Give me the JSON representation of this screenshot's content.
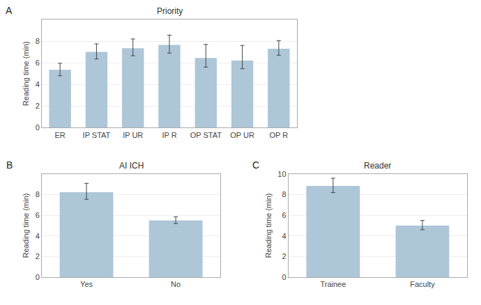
{
  "chart_data": [
    {
      "type": "bar",
      "title": "Priority",
      "annotations": [
        "A"
      ],
      "categories": [
        "ER",
        "IP STAT",
        "IP UR",
        "IP R",
        "OP STAT",
        "OP UR",
        "OP R"
      ],
      "values": [
        5.35,
        7.0,
        7.35,
        7.65,
        6.45,
        6.2,
        7.3
      ],
      "error_upper": [
        0.6,
        0.75,
        0.85,
        0.9,
        1.25,
        1.4,
        0.75
      ],
      "error_lower": [
        0.55,
        0.65,
        0.7,
        0.75,
        0.85,
        0.75,
        0.6
      ],
      "ylabel": "Reading time (min)",
      "ylim": [
        0,
        10
      ],
      "yticks": [
        0,
        2,
        4,
        6,
        8
      ],
      "color": "#adc6d8",
      "grid": true
    },
    {
      "type": "bar",
      "title": "AI ICH",
      "annotations": [
        "B"
      ],
      "categories": [
        "Yes",
        "No"
      ],
      "values": [
        8.25,
        5.5
      ],
      "error_upper": [
        0.85,
        0.35
      ],
      "error_lower": [
        0.7,
        0.3
      ],
      "ylabel": "Reading time (min)",
      "ylim": [
        0,
        10
      ],
      "yticks": [
        0,
        2,
        4,
        6,
        8
      ],
      "color": "#adc6d8",
      "grid": true
    },
    {
      "type": "bar",
      "title": "Reader",
      "annotations": [
        "C"
      ],
      "categories": [
        "Trainee",
        "Faculty"
      ],
      "values": [
        8.85,
        5.0
      ],
      "error_upper": [
        0.75,
        0.5
      ],
      "error_lower": [
        0.65,
        0.4
      ],
      "ylabel": "Reading time (min)",
      "ylim": [
        0,
        10
      ],
      "yticks": [
        0,
        2,
        4,
        6,
        8,
        10
      ],
      "color": "#adc6d8",
      "grid": true
    }
  ]
}
